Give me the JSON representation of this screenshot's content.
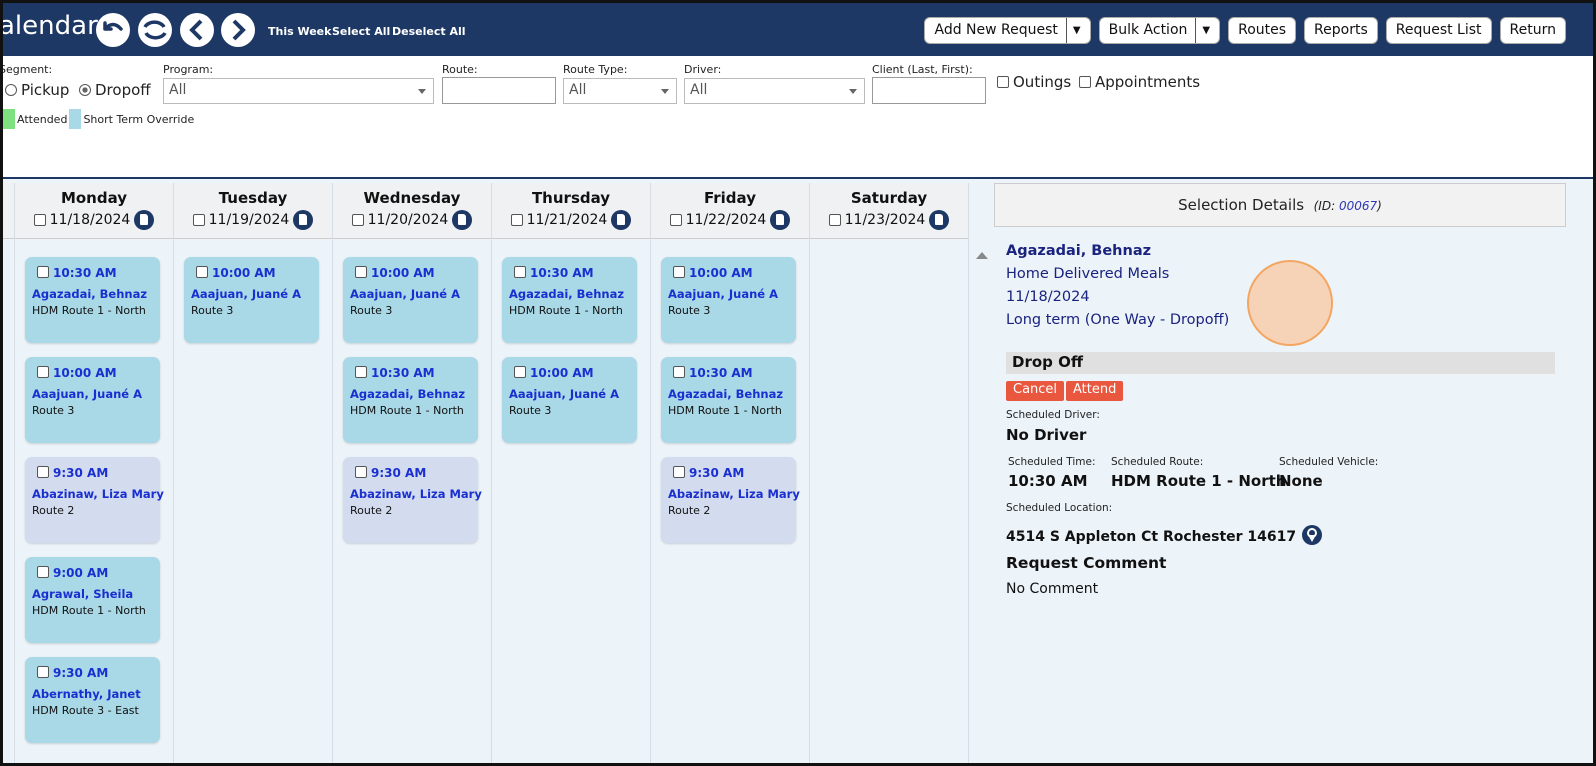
{
  "header": {
    "title": "alendar",
    "links": [
      "This Week",
      "Select All",
      "Deselect All"
    ],
    "buttons": [
      "Add New Request",
      "Bulk Action",
      "Routes",
      "Reports",
      "Request List",
      "Return"
    ]
  },
  "filters": {
    "segment_label": "Segment:",
    "segment_options": [
      "Pickup",
      "Dropoff"
    ],
    "program_label": "Program:",
    "program_value": "All",
    "route_label": "Route:",
    "route_type_label": "Route Type:",
    "route_type_value": "All",
    "driver_label": "Driver:",
    "driver_value": "All",
    "client_label": "Client (Last, First):",
    "checkboxes": [
      "Outings",
      "Appointments"
    ],
    "legend": [
      {
        "label": "Attended",
        "color": "#7ee07e"
      },
      {
        "label": "Short Term Override",
        "color": "#a9d8e6"
      }
    ]
  },
  "days": [
    {
      "name": "Monday",
      "date": "11/18/2024",
      "entries": [
        {
          "time": "10:30 AM",
          "client": "Agazadai, Behnaz",
          "route": "HDM Route 1 - North",
          "color": "#a9d8e6"
        },
        {
          "time": "10:00 AM",
          "client": "Aaajuan, Juané A",
          "route": "Route 3",
          "color": "#a9d8e6"
        },
        {
          "time": "9:30 AM",
          "client": "Abazinaw, Liza Mary",
          "route": "Route 2",
          "color": "#d3dcef"
        },
        {
          "time": "9:00 AM",
          "client": "Agrawal, Sheila",
          "route": "HDM Route 1 - North",
          "color": "#a9d8e6"
        },
        {
          "time": "9:30 AM",
          "client": "Abernathy, Janet",
          "route": "HDM Route 3 - East",
          "color": "#a9d8e6"
        }
      ]
    },
    {
      "name": "Tuesday",
      "date": "11/19/2024",
      "entries": [
        {
          "time": "10:00 AM",
          "client": "Aaajuan, Juané A",
          "route": "Route 3",
          "color": "#a9d8e6"
        }
      ]
    },
    {
      "name": "Wednesday",
      "date": "11/20/2024",
      "entries": [
        {
          "time": "10:00 AM",
          "client": "Aaajuan, Juané A",
          "route": "Route 3",
          "color": "#a9d8e6"
        },
        {
          "time": "10:30 AM",
          "client": "Agazadai, Behnaz",
          "route": "HDM Route 1 - North",
          "color": "#a9d8e6"
        },
        {
          "time": "9:30 AM",
          "client": "Abazinaw, Liza Mary",
          "route": "Route 2",
          "color": "#d3dcef"
        }
      ]
    },
    {
      "name": "Thursday",
      "date": "11/21/2024",
      "entries": [
        {
          "time": "10:30 AM",
          "client": "Agazadai, Behnaz",
          "route": "HDM Route 1 - North",
          "color": "#a9d8e6"
        },
        {
          "time": "10:00 AM",
          "client": "Aaajuan, Juané A",
          "route": "Route 3",
          "color": "#a9d8e6"
        }
      ]
    },
    {
      "name": "Friday",
      "date": "11/22/2024",
      "entries": [
        {
          "time": "10:00 AM",
          "client": "Aaajuan, Juané A",
          "route": "Route 3",
          "color": "#a9d8e6"
        },
        {
          "time": "10:30 AM",
          "client": "Agazadai, Behnaz",
          "route": "HDM Route 1 - North",
          "color": "#a9d8e6"
        },
        {
          "time": "9:30 AM",
          "client": "Abazinaw, Liza Mary",
          "route": "Route 2",
          "color": "#d3dcef"
        }
      ]
    },
    {
      "name": "Saturday",
      "date": "11/23/2024",
      "entries": []
    }
  ],
  "details": {
    "title": "Selection Details",
    "id_prefix": "(ID:",
    "id": "00067",
    "id_suffix": ")",
    "client": "Agazadai, Behnaz",
    "program": "Home Delivered Meals",
    "date": "11/18/2024",
    "request_type": "Long term (One Way - Dropoff)",
    "section": "Drop Off",
    "actions": [
      "Cancel",
      "Attend"
    ],
    "driver_label": "Scheduled Driver:",
    "driver": "No Driver",
    "fields": [
      {
        "label": "Scheduled Time:",
        "value": "10:30 AM"
      },
      {
        "label": "Scheduled Route:",
        "value": "HDM Route 1 - North"
      },
      {
        "label": "Scheduled Vehicle:",
        "value": "None"
      }
    ],
    "location_label": "Scheduled Location:",
    "location": "4514 S Appleton Ct Rochester 14617",
    "comment_title": "Request Comment",
    "comment": "No Comment"
  }
}
